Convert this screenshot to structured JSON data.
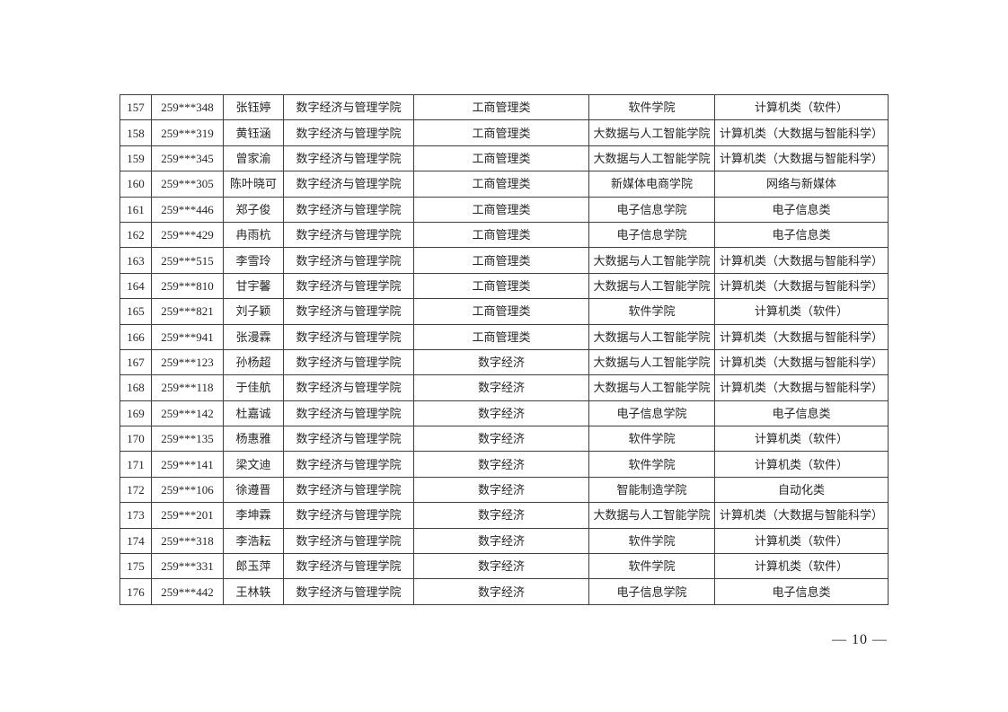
{
  "page": {
    "number_label": "— 10 —"
  },
  "table": {
    "rows": [
      [
        "157",
        "259***348",
        "张钰婷",
        "数字经济与管理学院",
        "工商管理类",
        "软件学院",
        "计算机类（软件）"
      ],
      [
        "158",
        "259***319",
        "黄钰涵",
        "数字经济与管理学院",
        "工商管理类",
        "大数据与人工智能学院",
        "计算机类（大数据与智能科学）"
      ],
      [
        "159",
        "259***345",
        "曾家渝",
        "数字经济与管理学院",
        "工商管理类",
        "大数据与人工智能学院",
        "计算机类（大数据与智能科学）"
      ],
      [
        "160",
        "259***305",
        "陈叶晓可",
        "数字经济与管理学院",
        "工商管理类",
        "新媒体电商学院",
        "网络与新媒体"
      ],
      [
        "161",
        "259***446",
        "郑子俊",
        "数字经济与管理学院",
        "工商管理类",
        "电子信息学院",
        "电子信息类"
      ],
      [
        "162",
        "259***429",
        "冉雨杭",
        "数字经济与管理学院",
        "工商管理类",
        "电子信息学院",
        "电子信息类"
      ],
      [
        "163",
        "259***515",
        "李雪玲",
        "数字经济与管理学院",
        "工商管理类",
        "大数据与人工智能学院",
        "计算机类（大数据与智能科学）"
      ],
      [
        "164",
        "259***810",
        "甘宇馨",
        "数字经济与管理学院",
        "工商管理类",
        "大数据与人工智能学院",
        "计算机类（大数据与智能科学）"
      ],
      [
        "165",
        "259***821",
        "刘子颖",
        "数字经济与管理学院",
        "工商管理类",
        "软件学院",
        "计算机类（软件）"
      ],
      [
        "166",
        "259***941",
        "张漫霖",
        "数字经济与管理学院",
        "工商管理类",
        "大数据与人工智能学院",
        "计算机类（大数据与智能科学）"
      ],
      [
        "167",
        "259***123",
        "孙杨超",
        "数字经济与管理学院",
        "数字经济",
        "大数据与人工智能学院",
        "计算机类（大数据与智能科学）"
      ],
      [
        "168",
        "259***118",
        "于佳航",
        "数字经济与管理学院",
        "数字经济",
        "大数据与人工智能学院",
        "计算机类（大数据与智能科学）"
      ],
      [
        "169",
        "259***142",
        "杜嘉诚",
        "数字经济与管理学院",
        "数字经济",
        "电子信息学院",
        "电子信息类"
      ],
      [
        "170",
        "259***135",
        "杨惠雅",
        "数字经济与管理学院",
        "数字经济",
        "软件学院",
        "计算机类（软件）"
      ],
      [
        "171",
        "259***141",
        "梁文迪",
        "数字经济与管理学院",
        "数字经济",
        "软件学院",
        "计算机类（软件）"
      ],
      [
        "172",
        "259***106",
        "徐遵晋",
        "数字经济与管理学院",
        "数字经济",
        "智能制造学院",
        "自动化类"
      ],
      [
        "173",
        "259***201",
        "李坤霖",
        "数字经济与管理学院",
        "数字经济",
        "大数据与人工智能学院",
        "计算机类（大数据与智能科学）"
      ],
      [
        "174",
        "259***318",
        "李浩耘",
        "数字经济与管理学院",
        "数字经济",
        "软件学院",
        "计算机类（软件）"
      ],
      [
        "175",
        "259***331",
        "郎玉萍",
        "数字经济与管理学院",
        "数字经济",
        "软件学院",
        "计算机类（软件）"
      ],
      [
        "176",
        "259***442",
        "王林轶",
        "数字经济与管理学院",
        "数字经济",
        "电子信息学院",
        "电子信息类"
      ]
    ]
  }
}
